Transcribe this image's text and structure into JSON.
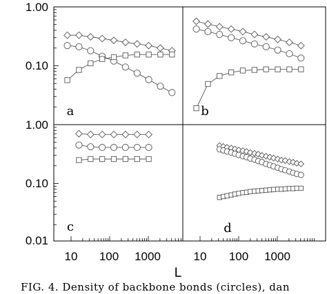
{
  "chart_data": [
    {
      "type": "line",
      "panel_label": "a",
      "xscale": "log",
      "yscale": "log",
      "xlim": [
        5,
        5000
      ],
      "ylim": [
        0.01,
        1.0
      ],
      "series": [
        {
          "marker": "diamond",
          "x": [
            8,
            16,
            32,
            64,
            128,
            256,
            512,
            1024,
            2048,
            4096
          ],
          "y": [
            0.33,
            0.33,
            0.31,
            0.29,
            0.27,
            0.25,
            0.235,
            0.22,
            0.2,
            0.18
          ]
        },
        {
          "marker": "circle",
          "x": [
            8,
            16,
            32,
            64,
            128,
            256,
            512,
            1024,
            2048,
            4096
          ],
          "y": [
            0.22,
            0.21,
            0.18,
            0.145,
            0.12,
            0.095,
            0.075,
            0.058,
            0.045,
            0.035
          ]
        },
        {
          "marker": "square",
          "x": [
            8,
            16,
            32,
            64,
            128,
            256,
            512,
            1024,
            2048,
            4096
          ],
          "y": [
            0.057,
            0.085,
            0.11,
            0.13,
            0.14,
            0.15,
            0.155,
            0.155,
            0.155,
            0.155
          ]
        }
      ]
    },
    {
      "type": "line",
      "panel_label": "b",
      "xscale": "log",
      "yscale": "log",
      "xlim": [
        5,
        5000
      ],
      "ylim": [
        0.01,
        1.0
      ],
      "series": [
        {
          "marker": "diamond",
          "x": [
            8,
            16,
            32,
            64,
            128,
            256,
            512,
            1024,
            2048,
            4096
          ],
          "y": [
            0.57,
            0.51,
            0.46,
            0.42,
            0.38,
            0.34,
            0.31,
            0.28,
            0.25,
            0.22
          ]
        },
        {
          "marker": "circle",
          "x": [
            8,
            16,
            32,
            64,
            128,
            256,
            512,
            1024,
            2048,
            4096
          ],
          "y": [
            0.42,
            0.38,
            0.34,
            0.3,
            0.265,
            0.235,
            0.21,
            0.185,
            0.16,
            0.135
          ]
        },
        {
          "marker": "square",
          "x": [
            8,
            16,
            32,
            64,
            128,
            256,
            512,
            1024,
            2048,
            4096
          ],
          "y": [
            0.019,
            0.049,
            0.067,
            0.077,
            0.083,
            0.085,
            0.087,
            0.087,
            0.087,
            0.087
          ]
        }
      ]
    },
    {
      "type": "line",
      "panel_label": "c",
      "xscale": "log",
      "yscale": "log",
      "xlim": [
        5,
        5000
      ],
      "ylim": [
        0.01,
        1.0
      ],
      "series": [
        {
          "marker": "diamond",
          "x": [
            16,
            32,
            64,
            128,
            256,
            512,
            1024
          ],
          "y": [
            0.7,
            0.68,
            0.68,
            0.68,
            0.68,
            0.68,
            0.68
          ]
        },
        {
          "marker": "circle",
          "x": [
            16,
            32,
            64,
            128,
            256,
            512,
            1024
          ],
          "y": [
            0.45,
            0.42,
            0.41,
            0.41,
            0.41,
            0.41,
            0.41
          ]
        },
        {
          "marker": "square",
          "x": [
            16,
            32,
            64,
            128,
            256,
            512,
            1024
          ],
          "y": [
            0.25,
            0.26,
            0.26,
            0.26,
            0.26,
            0.26,
            0.26
          ]
        }
      ]
    },
    {
      "type": "line",
      "panel_label": "d",
      "xscale": "log",
      "yscale": "log",
      "xlim": [
        5,
        5000
      ],
      "ylim": [
        0.01,
        1.0
      ],
      "series": [
        {
          "marker": "diamond",
          "x": [
            32,
            40,
            50,
            64,
            80,
            100,
            128,
            160,
            200,
            256,
            320,
            400,
            512,
            640,
            800,
            1024,
            1280,
            1600,
            2048,
            2560,
            3200,
            4096
          ],
          "y": [
            0.44,
            0.425,
            0.41,
            0.4,
            0.385,
            0.37,
            0.36,
            0.35,
            0.335,
            0.325,
            0.315,
            0.3,
            0.29,
            0.28,
            0.27,
            0.26,
            0.25,
            0.245,
            0.235,
            0.23,
            0.22,
            0.215
          ]
        },
        {
          "marker": "circle",
          "x": [
            32,
            40,
            50,
            64,
            80,
            100,
            128,
            160,
            200,
            256,
            320,
            400,
            512,
            640,
            800,
            1024,
            1280,
            1600,
            2048,
            2560,
            3200,
            4096
          ],
          "y": [
            0.38,
            0.365,
            0.35,
            0.335,
            0.32,
            0.305,
            0.29,
            0.28,
            0.265,
            0.255,
            0.24,
            0.23,
            0.215,
            0.205,
            0.195,
            0.185,
            0.175,
            0.168,
            0.16,
            0.152,
            0.145,
            0.14
          ]
        },
        {
          "marker": "square",
          "x": [
            32,
            40,
            50,
            64,
            80,
            100,
            128,
            160,
            200,
            256,
            320,
            400,
            512,
            640,
            800,
            1024,
            1280,
            1600,
            2048,
            2560,
            3200,
            4096
          ],
          "y": [
            0.058,
            0.06,
            0.062,
            0.064,
            0.066,
            0.068,
            0.07,
            0.071,
            0.073,
            0.074,
            0.075,
            0.076,
            0.077,
            0.078,
            0.079,
            0.08,
            0.08,
            0.081,
            0.082,
            0.082,
            0.083,
            0.083
          ]
        }
      ]
    }
  ],
  "axes": {
    "x_ticks": [
      "10",
      "100",
      "1000"
    ],
    "y_ticks_top": [
      "1.00",
      "0.10"
    ],
    "y_ticks_bottom": [
      "1.00",
      "0.10",
      "0.01"
    ],
    "xlabel": "L"
  },
  "caption": "FIG. 4.    Density of backbone bonds (circles), dan"
}
